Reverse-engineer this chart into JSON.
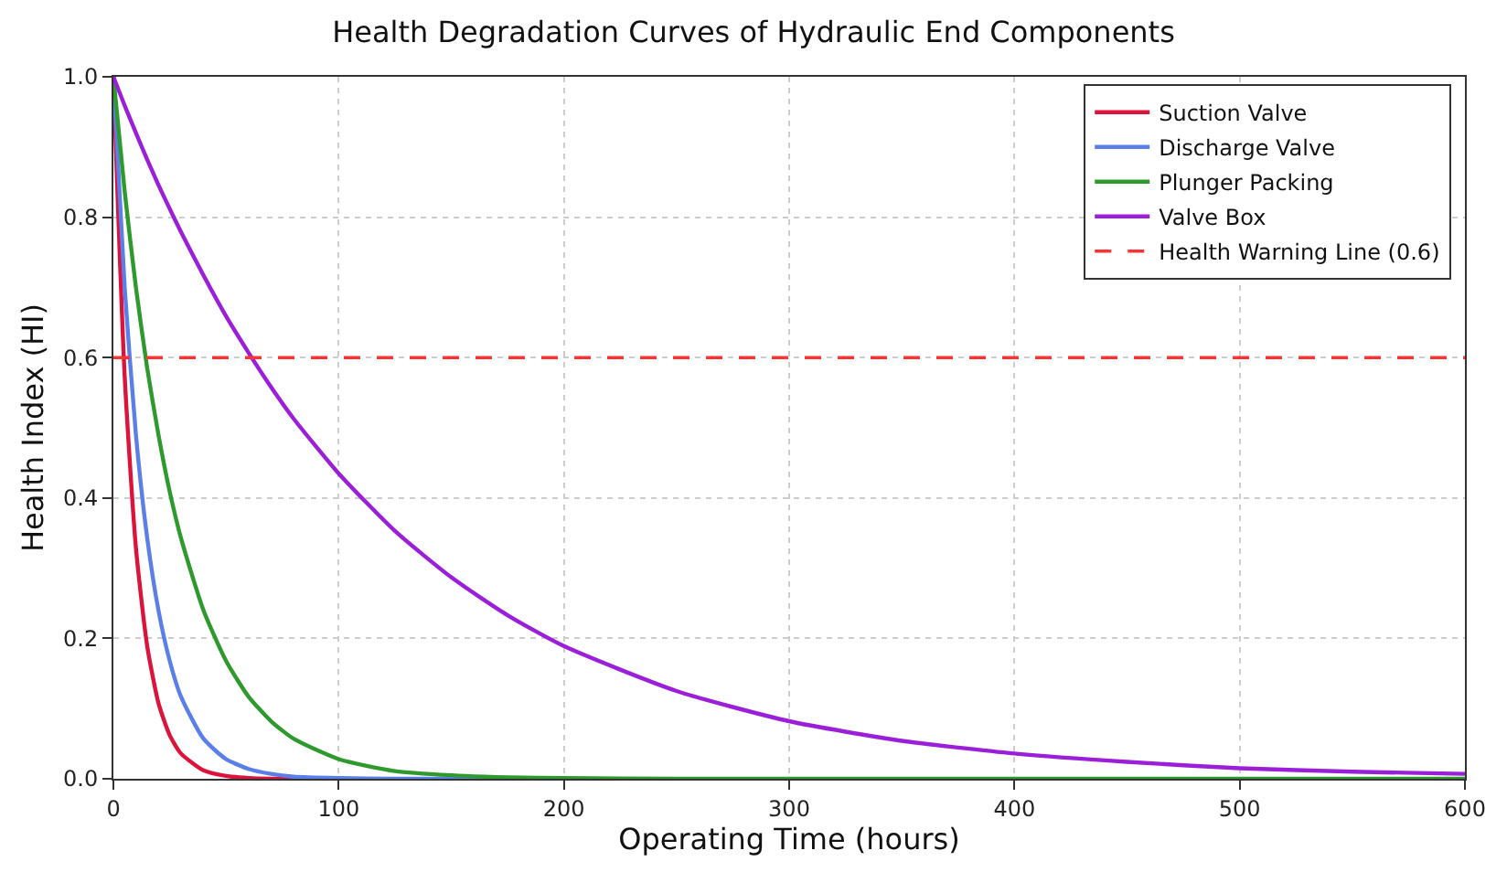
{
  "chart_data": {
    "type": "line",
    "title": "Health Degradation Curves of Hydraulic End Components",
    "xlabel": "Operating Time (hours)",
    "ylabel": "Health Index (HI)",
    "x": [
      0,
      5,
      10,
      15,
      20,
      25,
      30,
      40,
      50,
      60,
      70,
      80,
      100,
      125,
      150,
      175,
      200,
      250,
      300,
      350,
      400,
      450,
      500,
      550,
      600
    ],
    "series": [
      {
        "name": "Suction Valve",
        "color": "#dc143c",
        "values": [
          1,
          0.574,
          0.329,
          0.189,
          0.108,
          0.062,
          0.036,
          0.012,
          0.004,
          0.001,
          0,
          0,
          0,
          null,
          null,
          null,
          null,
          null,
          null,
          null,
          null,
          null,
          null,
          null,
          null
        ]
      },
      {
        "name": "Discharge Valve",
        "color": "#5b7fe8",
        "values": [
          1,
          0.7,
          0.49,
          0.343,
          0.24,
          0.168,
          0.117,
          0.057,
          0.028,
          0.014,
          0.007,
          0.003,
          0.001,
          0,
          0,
          0,
          null,
          null,
          null,
          null,
          null,
          null,
          null,
          null,
          null
        ]
      },
      {
        "name": "Plunger Packing",
        "color": "#2e9a2e",
        "values": [
          1,
          0.837,
          0.7,
          0.585,
          0.49,
          0.409,
          0.343,
          0.24,
          0.168,
          0.117,
          0.082,
          0.057,
          0.028,
          0.011,
          0.005,
          0.002,
          0.001,
          0,
          0,
          0,
          0,
          0,
          0,
          0,
          0
        ]
      },
      {
        "name": "Valve Box",
        "color": "#9b1fd9",
        "values": [
          1,
          0.959,
          0.92,
          0.882,
          0.846,
          0.812,
          0.779,
          0.717,
          0.659,
          0.607,
          0.558,
          0.513,
          0.435,
          0.353,
          0.287,
          0.233,
          0.189,
          0.125,
          0.082,
          0.054,
          0.036,
          0.024,
          0.015,
          0.01,
          0.007
        ]
      }
    ],
    "ref_lines": [
      {
        "axis": "y",
        "value": 0.6,
        "label": "Health Warning Line (0.6)",
        "color": "#ff3333",
        "line_style": "dashed"
      }
    ],
    "xlim": [
      0,
      600
    ],
    "xticks": [
      0,
      100,
      200,
      300,
      400,
      500,
      600
    ],
    "ylim": [
      0,
      1.0
    ],
    "yticks": [
      {
        "value": 0,
        "label": "0.0"
      },
      0.2,
      0.4,
      0.6,
      0.8,
      {
        "value": 1.0,
        "label": "1.0"
      }
    ],
    "grid": true,
    "legend": "top right",
    "marker": "none",
    "line_style": "solid"
  }
}
